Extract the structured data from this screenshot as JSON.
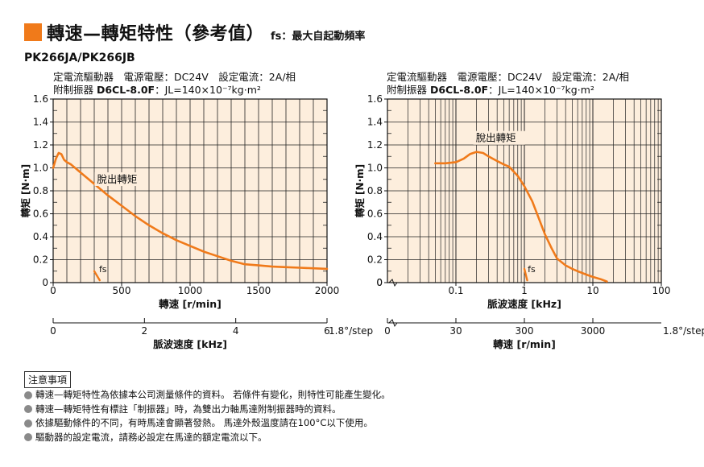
{
  "header": {
    "title": "轉速—轉矩特性（參考值）",
    "subtitle": "fs：最大自起動頻率",
    "model": "PK266JA/PK266JB"
  },
  "conditions": {
    "left_line1": "定電流驅動器　電源電壓：DC24V　設定電流：2A/相",
    "left_line2_label": "附制振器 ",
    "left_line2_model": "D6CL-8.0F",
    "left_line2_rest": "：JL=140×10⁻⁷kg·m²",
    "right_line1": "定電流驅動器　電源電壓：DC24V　設定電流：2A/相",
    "right_line2_label": "附制振器 ",
    "right_line2_model": "D6CL-8.0F",
    "right_line2_rest": "：JL=140×10⁻⁷kg·m²"
  },
  "chart_data": [
    {
      "type": "line",
      "xlabel": "轉速 [r/min]",
      "ylabel": "轉矩 [N·m]",
      "xlim": [
        0,
        2000
      ],
      "ylim": [
        0,
        1.6
      ],
      "x_ticks": [
        "0",
        "500",
        "1000",
        "1500",
        "2000"
      ],
      "y_ticks": [
        "0",
        "0.2",
        "0.4",
        "0.6",
        "0.8",
        "1.0",
        "1.2",
        "1.4",
        "1.6"
      ],
      "secondary_xlabel": "脈波速度 [kHz]",
      "secondary_x_ticks": [
        "0",
        "2",
        "4",
        "6"
      ],
      "secondary_x_unit": "1.8°/step",
      "annotations": [
        "脫出轉矩",
        "fs"
      ],
      "grid": true,
      "series": [
        {
          "name": "脫出轉矩",
          "x": [
            0,
            20,
            40,
            60,
            80,
            100,
            130,
            160,
            200,
            260,
            330,
            400,
            500,
            600,
            700,
            800,
            900,
            1000,
            1100,
            1200,
            1300,
            1400,
            1500,
            1600,
            1700,
            1800,
            1900,
            2000
          ],
          "y": [
            1.0,
            1.08,
            1.13,
            1.12,
            1.07,
            1.05,
            1.03,
            1.0,
            0.96,
            0.9,
            0.83,
            0.76,
            0.67,
            0.58,
            0.5,
            0.43,
            0.37,
            0.32,
            0.27,
            0.23,
            0.19,
            0.16,
            0.15,
            0.14,
            0.135,
            0.13,
            0.125,
            0.12
          ]
        },
        {
          "name": "fs",
          "x": [
            300,
            340
          ],
          "y": [
            0.1,
            0.02
          ]
        }
      ]
    },
    {
      "type": "line",
      "xlabel": "脈波速度 [kHz]",
      "ylabel": "轉矩 [N·m]",
      "x_scale": "log",
      "xlim": [
        0.01,
        100
      ],
      "ylim": [
        0,
        1.6
      ],
      "x_ticks": [
        "0.1",
        "1",
        "10",
        "100"
      ],
      "y_ticks": [
        "0",
        "0.2",
        "0.4",
        "0.6",
        "0.8",
        "1.0",
        "1.2",
        "1.4",
        "1.6"
      ],
      "secondary_xlabel": "轉速 [r/min]",
      "secondary_x_ticks": [
        "0",
        "30",
        "300",
        "3000"
      ],
      "secondary_x_unit": "1.8°/step",
      "annotations": [
        "脫出轉矩",
        "fs"
      ],
      "grid": true,
      "series": [
        {
          "name": "脫出轉矩",
          "x": [
            0.05,
            0.07,
            0.1,
            0.13,
            0.16,
            0.2,
            0.25,
            0.3,
            0.4,
            0.5,
            0.6,
            0.8,
            1.0,
            1.3,
            1.6,
            2,
            2.5,
            3,
            4,
            5,
            6,
            8,
            10,
            13,
            16
          ],
          "y": [
            1.04,
            1.04,
            1.05,
            1.08,
            1.12,
            1.14,
            1.13,
            1.1,
            1.06,
            1.03,
            1.01,
            0.93,
            0.84,
            0.71,
            0.57,
            0.42,
            0.3,
            0.21,
            0.15,
            0.12,
            0.1,
            0.07,
            0.05,
            0.03,
            0.01
          ]
        },
        {
          "name": "fs",
          "x": [
            1.0,
            1.1
          ],
          "y": [
            0.12,
            0.02
          ]
        }
      ]
    }
  ],
  "notes": {
    "heading": "注意事項",
    "items": [
      "轉速—轉矩特性為依據本公司測量條件的資料。 若條件有變化，則特性可能產生變化。",
      "轉速—轉矩特性有標註「制振器」時，為雙出力軸馬達附制振器時的資料。",
      "依據驅動條件的不同，有時馬達會顯著發熱。 馬達外殼溫度請在100°C以下使用。",
      "驅動器的設定電流，請務必設定在馬達的額定電流以下。"
    ]
  },
  "colors": {
    "accent": "#f07a1a",
    "plot_bg": "#fdeedd",
    "curve": "#f07a1a",
    "grid": "#222222"
  }
}
